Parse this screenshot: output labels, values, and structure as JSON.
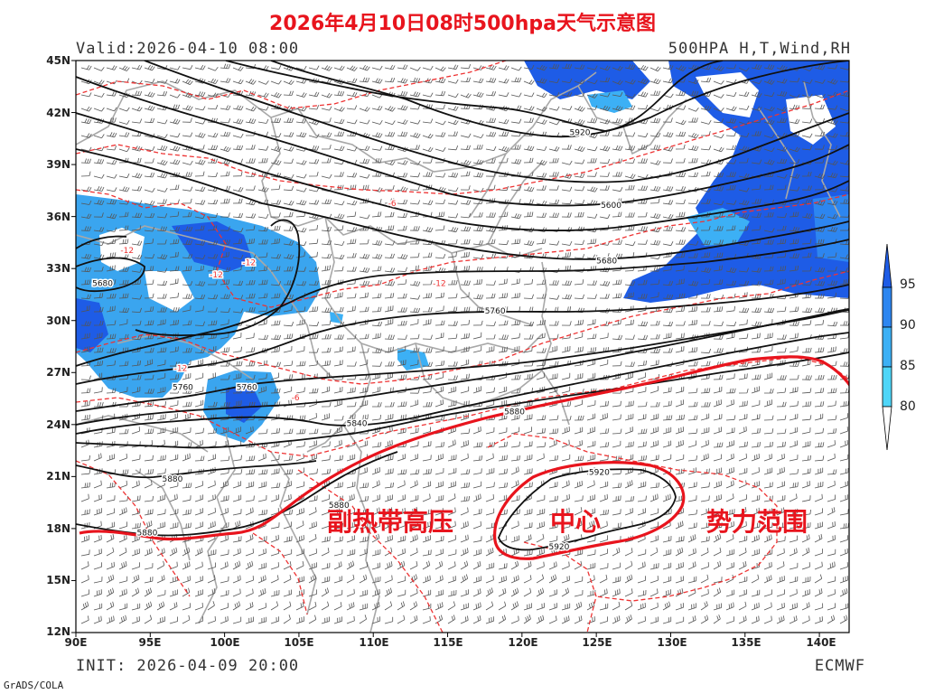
{
  "title": "2026年4月10日08时500hpa天气示意图",
  "header": {
    "valid": "Valid:2026-04-10 08:00",
    "product": "500HPA H,T,Wind,RH"
  },
  "footer": {
    "init": "INIT: 2026-04-09 20:00",
    "model": "ECMWF",
    "software": "GrADS/COLA"
  },
  "lat_labels": [
    "45N",
    "42N",
    "39N",
    "36N",
    "33N",
    "30N",
    "27N",
    "24N",
    "21N",
    "18N",
    "15N",
    "12N"
  ],
  "lon_labels": [
    "90E",
    "95E",
    "100E",
    "105E",
    "110E",
    "115E",
    "120E",
    "125E",
    "130E",
    "135E",
    "140E"
  ],
  "contour_labels": [
    {
      "text": "5920",
      "lon": 123.2,
      "lat": 40.7
    },
    {
      "text": "5600",
      "lon": 125.3,
      "lat": 36.5
    },
    {
      "text": "5680",
      "lon": 125.0,
      "lat": 33.3
    },
    {
      "text": "5760",
      "lon": 117.5,
      "lat": 30.4
    },
    {
      "text": "5680",
      "lon": 91.1,
      "lat": 32.0
    },
    {
      "text": "5760",
      "lon": 96.5,
      "lat": 26.0
    },
    {
      "text": "5760",
      "lon": 100.8,
      "lat": 26.0
    },
    {
      "text": "5840",
      "lon": 108.2,
      "lat": 23.9
    },
    {
      "text": "5880",
      "lon": 118.8,
      "lat": 24.6
    },
    {
      "text": "5880",
      "lon": 95.8,
      "lat": 20.7
    },
    {
      "text": "5880",
      "lon": 107.0,
      "lat": 19.2
    },
    {
      "text": "5880",
      "lon": 94.1,
      "lat": 17.6
    },
    {
      "text": "5920",
      "lon": 124.5,
      "lat": 21.1
    },
    {
      "text": "5920",
      "lon": 121.8,
      "lat": 16.8
    }
  ],
  "temp_labels": [
    {
      "text": "-12",
      "lon": 93.0,
      "lat": 33.9
    },
    {
      "text": "-12",
      "lon": 101.2,
      "lat": 33.2
    },
    {
      "text": "-12",
      "lon": 99.0,
      "lat": 32.5
    },
    {
      "text": "-12",
      "lon": 114.0,
      "lat": 32.0
    },
    {
      "text": "-12",
      "lon": 96.6,
      "lat": 27.1
    },
    {
      "text": "-6",
      "lon": 111.0,
      "lat": 36.6
    },
    {
      "text": "-6",
      "lon": 104.5,
      "lat": 25.4
    }
  ],
  "annotations": {
    "subtropical_high": "副热带高压",
    "center": "中心",
    "influence": "势力范围"
  },
  "colorbar": {
    "labels": [
      "95",
      "90",
      "85",
      "80"
    ],
    "colors": [
      "#1e5ce6",
      "#2d86f0",
      "#3cb0f5",
      "#4fd6f8"
    ]
  },
  "colors": {
    "annotation": "#e8141d",
    "height_contour": "#000000",
    "temp_contour": "#ee3333",
    "boundary": "#a8a8a8"
  }
}
